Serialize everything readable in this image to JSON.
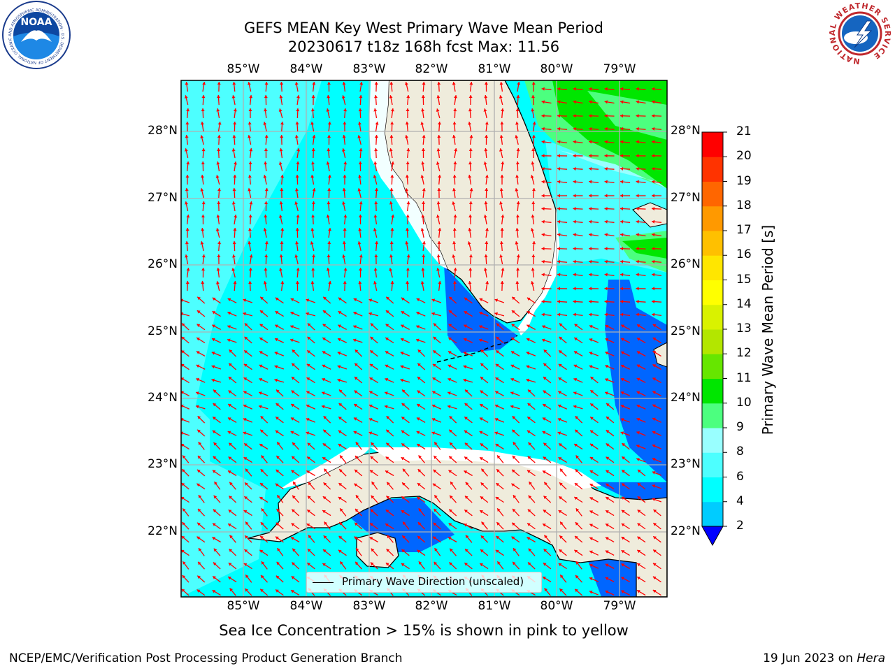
{
  "header": {
    "title_line1": "GEFS MEAN Key West Primary Wave Mean Period",
    "title_line2": "20230617 t18z 168h fcst   Max: 11.56"
  },
  "logos": {
    "noaa_text": "NOAA",
    "noaa_ring_text": "NATIONAL OCEANIC AND ATMOSPHERIC ADMINISTRATION · U.S. DEPARTMENT OF COMMERCE",
    "nws_ring_text": "NATIONAL WEATHER SERVICE"
  },
  "map": {
    "lon_labels": [
      "85°W",
      "84°W",
      "83°W",
      "82°W",
      "81°W",
      "80°W",
      "79°W"
    ],
    "lat_labels": [
      "28°N",
      "27°N",
      "26°N",
      "25°N",
      "24°N",
      "23°N",
      "22°N"
    ],
    "lon_range": [
      -86.0,
      -78.25
    ],
    "lat_range": [
      21.0,
      28.75
    ],
    "grid": true,
    "arrow_color": "#ff0000",
    "land_color": "#efecdc",
    "legend_label": "Primary Wave Direction (unscaled)"
  },
  "colorbar": {
    "label": "Primary Wave Mean Period [s]",
    "ticks": [
      "2",
      "4",
      "6",
      "8",
      "9",
      "10",
      "11",
      "12",
      "13",
      "14",
      "15",
      "16",
      "17",
      "18",
      "19",
      "20",
      "21"
    ],
    "colors": [
      "#0066ff",
      "#00ccff",
      "#00ffff",
      "#4dffff",
      "#99ffff",
      "#4cff7f",
      "#00e600",
      "#66e600",
      "#b3e600",
      "#d9f200",
      "#ffff00",
      "#ffe600",
      "#ffc000",
      "#ff9900",
      "#ff6600",
      "#ff3300",
      "#ff0000"
    ],
    "extend_color": "#0000ff"
  },
  "footer": {
    "sea_ice_note": "Sea Ice Concentration > 15% is shown in pink to yellow",
    "org": "NCEP/EMC/Verification Post Processing Product Generation Branch",
    "date": "19 Jun 2023 on ",
    "host": "Hera"
  }
}
